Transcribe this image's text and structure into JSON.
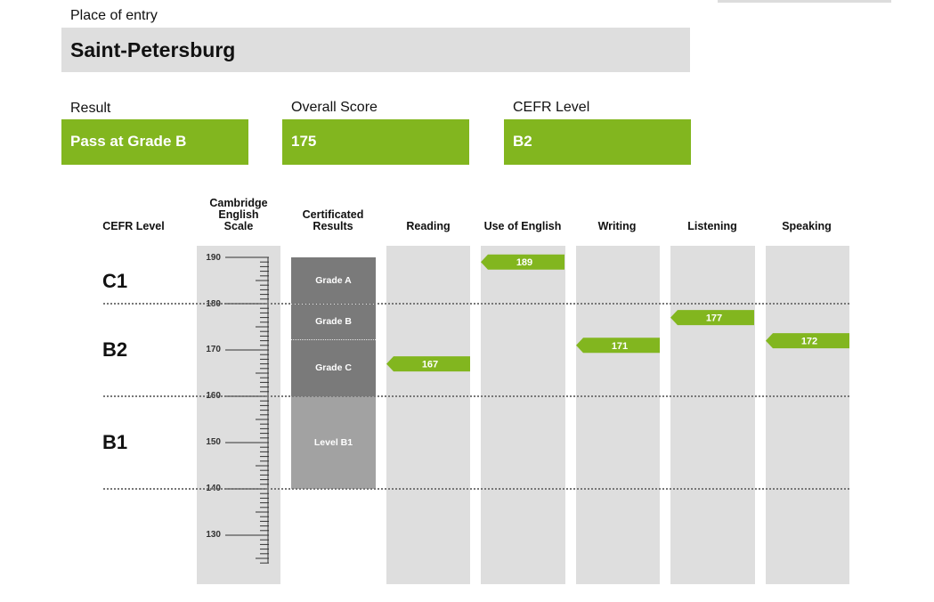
{
  "place": {
    "label": "Place of entry",
    "value": "Saint-Petersburg"
  },
  "summary": {
    "result": {
      "label": "Result",
      "value": "Pass at Grade B"
    },
    "overall": {
      "label": "Overall Score",
      "value": "175"
    },
    "cefr": {
      "label": "CEFR Level",
      "value": "B2"
    }
  },
  "colors": {
    "accent": "#82b61f",
    "panel": "#dedede",
    "grade_dark": "#7a7a7a",
    "grade_light": "#a2a2a2"
  },
  "chart": {
    "headers": {
      "cefr": "CEFR Level",
      "scale": [
        "Cambridge",
        "English",
        "Scale"
      ],
      "certificated": [
        "Certificated",
        "Results"
      ],
      "skills": [
        "Reading",
        "Use of English",
        "Writing",
        "Listening",
        "Speaking"
      ]
    },
    "levels": [
      "C1",
      "B2",
      "B1"
    ],
    "ticks": [
      "190",
      "180",
      "170",
      "160",
      "150",
      "140",
      "130"
    ],
    "grades": [
      "Grade A",
      "Grade B",
      "Grade C",
      "Level B1"
    ]
  },
  "chart_data": {
    "type": "bar",
    "categories": [
      "Reading",
      "Use of English",
      "Writing",
      "Listening",
      "Speaking"
    ],
    "values": [
      167,
      189,
      171,
      177,
      172
    ],
    "ylim": [
      122,
      193
    ],
    "cefr_bands": [
      {
        "level": "C1",
        "min": 180,
        "max": 190
      },
      {
        "level": "B2",
        "min": 160,
        "max": 180
      },
      {
        "level": "B1",
        "min": 140,
        "max": 160
      }
    ],
    "grade_bands": [
      {
        "name": "Grade A",
        "min": 180,
        "max": 190
      },
      {
        "name": "Grade B",
        "min": 173,
        "max": 180
      },
      {
        "name": "Grade C",
        "min": 160,
        "max": 173
      },
      {
        "name": "Level B1",
        "min": 140,
        "max": 160
      }
    ],
    "grid": false
  }
}
